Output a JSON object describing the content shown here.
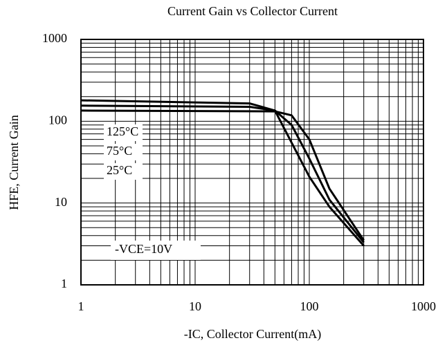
{
  "chart_data": {
    "type": "line",
    "title": "Current Gain vs Collector Current",
    "x_label": "-IC, Collector Current(mA)",
    "y_label": "HFE, Current Gain",
    "annotation": "-VCE=10V",
    "xlog": true,
    "ylog": true,
    "grid": true,
    "minor_grid": true,
    "xlim": [
      1,
      1000
    ],
    "ylim": [
      1,
      1000
    ],
    "xticks": [
      1,
      10,
      100,
      1000
    ],
    "yticks": [
      1,
      10,
      100,
      1000
    ],
    "series": [
      {
        "name": "125°C",
        "color": "#000000",
        "x": [
          1,
          30,
          50,
          100,
          150,
          300
        ],
        "values": [
          180,
          165,
          135,
          21,
          9,
          3
        ]
      },
      {
        "name": "75°C",
        "color": "#000000",
        "x": [
          1,
          30,
          50,
          70,
          100,
          150,
          300
        ],
        "values": [
          155,
          150,
          135,
          90,
          35,
          11,
          3.3
        ]
      },
      {
        "name": "25°C",
        "color": "#000000",
        "x": [
          1,
          50,
          70,
          100,
          150,
          300
        ],
        "values": [
          135,
          132,
          118,
          60,
          15,
          3.5
        ]
      }
    ]
  }
}
